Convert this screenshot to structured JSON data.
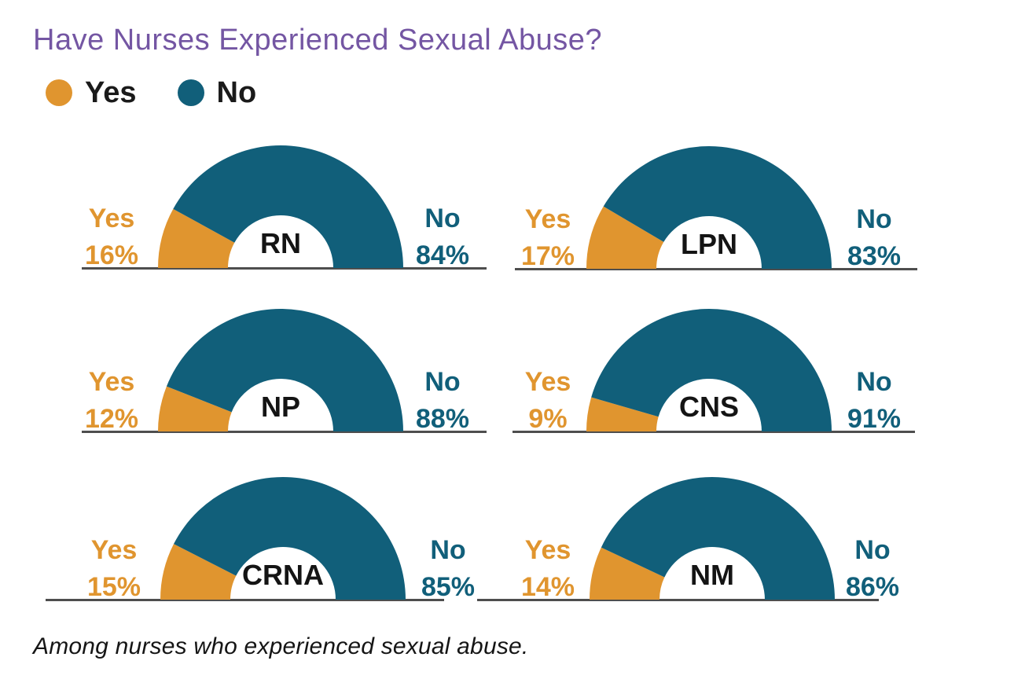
{
  "title": {
    "text": "Have Nurses Experienced Sexual Abuse?",
    "color": "#7456A3"
  },
  "legend": {
    "items": [
      {
        "label": "Yes",
        "color": "#E0952F"
      },
      {
        "label": "No",
        "color": "#115F7A"
      }
    ]
  },
  "caption": "Among nurses who experienced sexual abuse.",
  "colors": {
    "yes": "#E0952F",
    "no": "#115F7A",
    "baseline": "#4E4E4E",
    "text_dark": "#1a1a1a"
  },
  "chart_data": {
    "type": "pie",
    "subtype": "semicircle-donut-gauges",
    "title": "Have Nurses Experienced Sexual Abuse?",
    "units": "percent",
    "legend_position": "top-left",
    "grid": false,
    "side_labels": {
      "yes": "Yes",
      "no": "No"
    },
    "series_colors": {
      "Yes": "#E0952F",
      "No": "#115F7A"
    },
    "categories": [
      "RN",
      "LPN",
      "NP",
      "CNS",
      "CRNA",
      "NM"
    ],
    "gauges": [
      {
        "group": "RN",
        "yes": 16,
        "no": 84
      },
      {
        "group": "LPN",
        "yes": 17,
        "no": 83
      },
      {
        "group": "NP",
        "yes": 12,
        "no": 88
      },
      {
        "group": "CNS",
        "yes": 9,
        "no": 91
      },
      {
        "group": "CRNA",
        "yes": 15,
        "no": 85
      },
      {
        "group": "NM",
        "yes": 14,
        "no": 86
      }
    ],
    "footnote": "Among nurses who experienced sexual abuse."
  }
}
